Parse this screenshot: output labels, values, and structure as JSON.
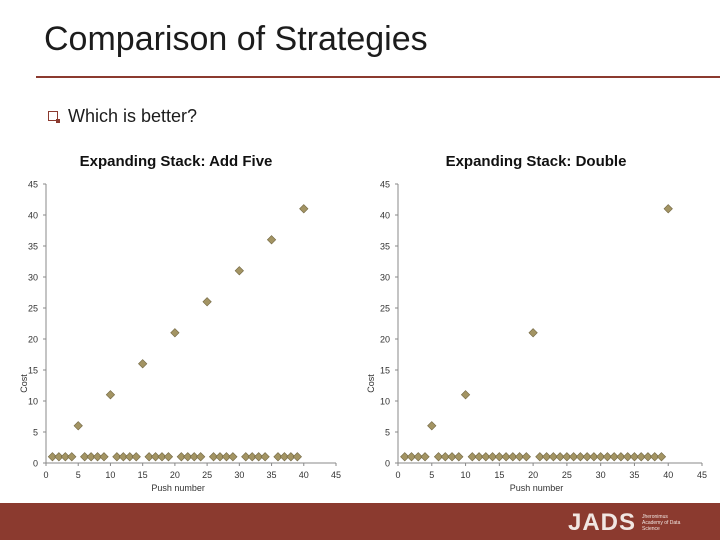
{
  "slide": {
    "title": "Comparison of Strategies",
    "bullet": "Which is better?"
  },
  "footer": {
    "logo_text": "JADS",
    "logo_subtext": "Jheronimus Academy of Data Science"
  },
  "colors": {
    "accent": "#8b3a2f",
    "marker_fill": "#a39463",
    "marker_stroke": "#6f6440"
  },
  "chart_data": [
    {
      "type": "scatter",
      "title": "Expanding Stack: Add Five",
      "xlabel": "Push number",
      "ylabel": "Cost",
      "xlim": [
        0,
        45
      ],
      "ylim": [
        0,
        45
      ],
      "xticks": [
        0,
        5,
        10,
        15,
        20,
        25,
        30,
        35,
        40,
        45
      ],
      "yticks": [
        0,
        5,
        10,
        15,
        20,
        25,
        30,
        35,
        40,
        45
      ],
      "grid": false,
      "legend": "none",
      "series": [
        {
          "x": [
            1,
            2,
            3,
            4,
            5,
            6,
            7,
            8,
            9,
            10,
            11,
            12,
            13,
            14,
            15,
            16,
            17,
            18,
            19,
            20,
            21,
            22,
            23,
            24,
            25,
            26,
            27,
            28,
            29,
            30,
            31,
            32,
            33,
            34,
            35,
            36,
            37,
            38,
            39,
            40
          ],
          "y": [
            1,
            1,
            1,
            1,
            6,
            1,
            1,
            1,
            1,
            11,
            1,
            1,
            1,
            1,
            16,
            1,
            1,
            1,
            1,
            21,
            1,
            1,
            1,
            1,
            26,
            1,
            1,
            1,
            1,
            31,
            1,
            1,
            1,
            1,
            36,
            1,
            1,
            1,
            1,
            41
          ]
        }
      ]
    },
    {
      "type": "scatter",
      "title": "Expanding Stack: Double",
      "xlabel": "Push number",
      "ylabel": "Cost",
      "xlim": [
        0,
        45
      ],
      "ylim": [
        0,
        45
      ],
      "xticks": [
        0,
        5,
        10,
        15,
        20,
        25,
        30,
        35,
        40,
        45
      ],
      "yticks": [
        0,
        5,
        10,
        15,
        20,
        25,
        30,
        35,
        40,
        45
      ],
      "grid": false,
      "legend": "none",
      "series": [
        {
          "x": [
            1,
            2,
            3,
            4,
            5,
            6,
            7,
            8,
            9,
            10,
            11,
            12,
            13,
            14,
            15,
            16,
            17,
            18,
            19,
            20,
            21,
            22,
            23,
            24,
            25,
            26,
            27,
            28,
            29,
            30,
            31,
            32,
            33,
            34,
            35,
            36,
            37,
            38,
            39,
            40
          ],
          "y": [
            1,
            1,
            1,
            1,
            6,
            1,
            1,
            1,
            1,
            11,
            1,
            1,
            1,
            1,
            1,
            1,
            1,
            1,
            1,
            21,
            1,
            1,
            1,
            1,
            1,
            1,
            1,
            1,
            1,
            1,
            1,
            1,
            1,
            1,
            1,
            1,
            1,
            1,
            1,
            41
          ]
        }
      ]
    }
  ]
}
